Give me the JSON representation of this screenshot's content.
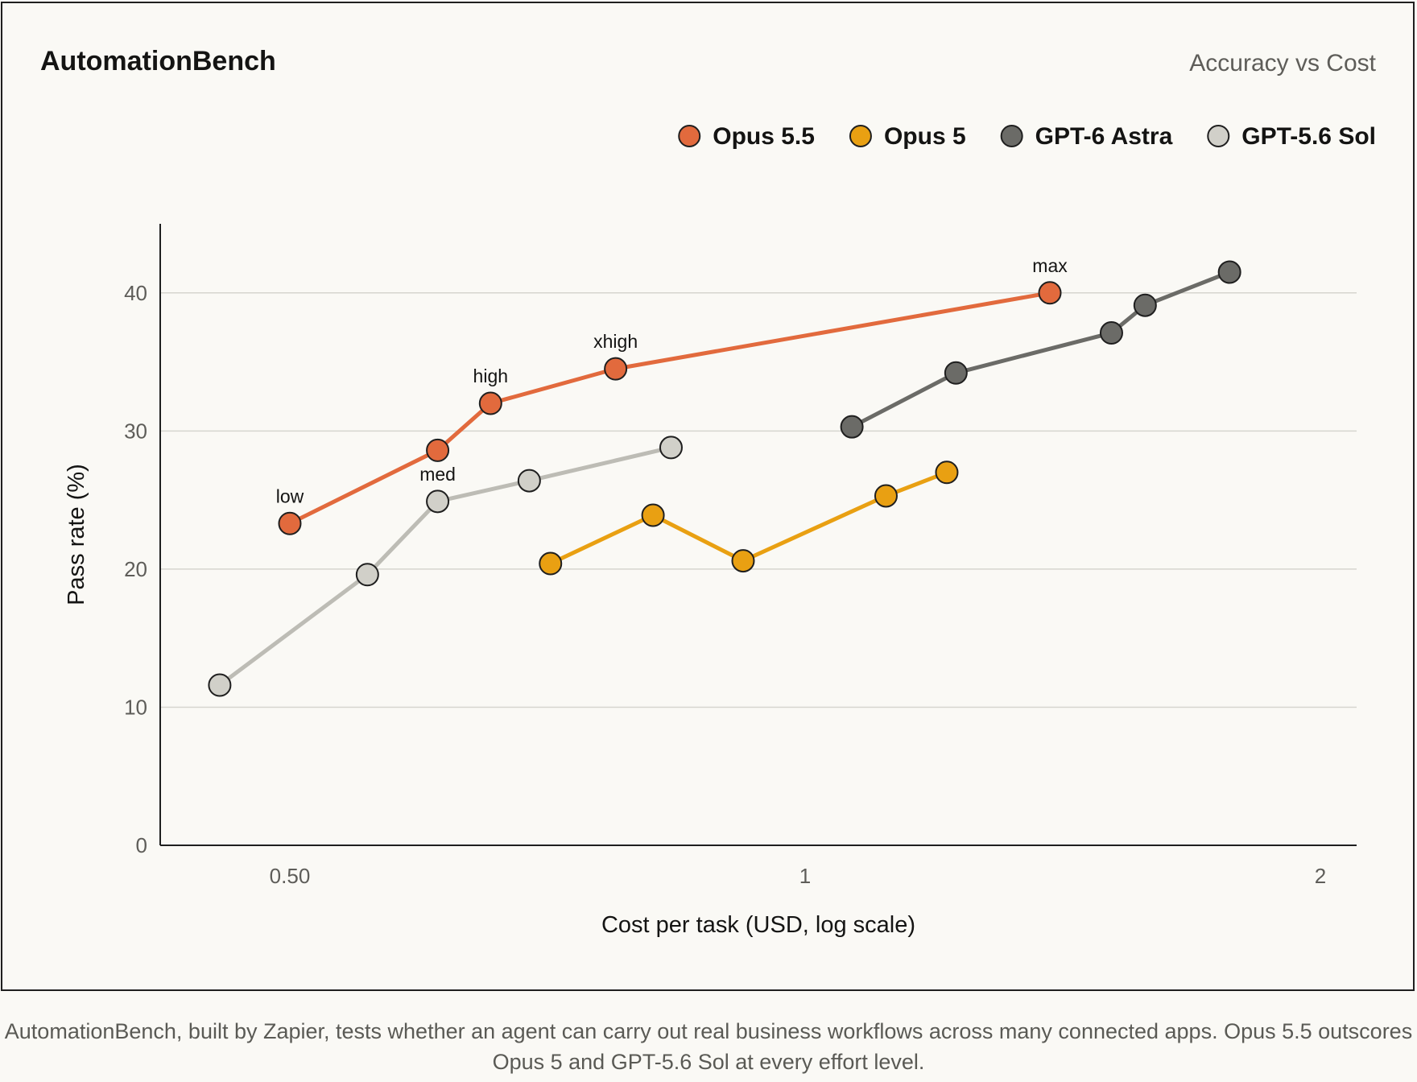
{
  "chart_data": {
    "type": "line",
    "title": "AutomationBench",
    "subtitle": "Accuracy vs Cost",
    "xlabel": "Cost per task (USD, log scale)",
    "ylabel": "Pass rate (%)",
    "x_scale": "log",
    "xlim": [
      0.42,
      2.1
    ],
    "ylim": [
      0,
      45
    ],
    "x_ticks": [
      0.5,
      1,
      2
    ],
    "x_tick_labels": [
      "0.50",
      "1",
      "2"
    ],
    "y_ticks": [
      0,
      10,
      20,
      30,
      40
    ],
    "y_tick_labels": [
      "0",
      "10",
      "20",
      "30",
      "40"
    ],
    "grid": "horizontal",
    "legend_position": "top-right",
    "series": [
      {
        "name": "Opus 5.5",
        "color": "#e26a3d",
        "points": [
          {
            "x": 0.5,
            "y": 23.3,
            "label": "low"
          },
          {
            "x": 0.61,
            "y": 28.6,
            "label": ""
          },
          {
            "x": 0.655,
            "y": 32.0,
            "label": "high"
          },
          {
            "x": 0.775,
            "y": 34.5,
            "label": "xhigh"
          },
          {
            "x": 1.39,
            "y": 40.0,
            "label": "max"
          }
        ]
      },
      {
        "name": "Opus 5",
        "color": "#e9a012",
        "points": [
          {
            "x": 0.71,
            "y": 20.4
          },
          {
            "x": 0.815,
            "y": 23.9
          },
          {
            "x": 0.92,
            "y": 20.6
          },
          {
            "x": 1.115,
            "y": 25.3
          },
          {
            "x": 1.21,
            "y": 27.0
          }
        ]
      },
      {
        "name": "GPT-6 Astra",
        "color": "#6b6b67",
        "points": [
          {
            "x": 1.065,
            "y": 30.3
          },
          {
            "x": 1.225,
            "y": 34.2
          },
          {
            "x": 1.51,
            "y": 37.1
          },
          {
            "x": 1.58,
            "y": 39.1
          },
          {
            "x": 1.77,
            "y": 41.5
          }
        ]
      },
      {
        "name": "GPT-5.6 Sol",
        "color": "#d1d0c9",
        "line_color": "#bdbcb5",
        "points": [
          {
            "x": 0.455,
            "y": 11.6
          },
          {
            "x": 0.555,
            "y": 19.6
          },
          {
            "x": 0.61,
            "y": 24.9,
            "label": "med"
          },
          {
            "x": 0.69,
            "y": 26.4
          },
          {
            "x": 0.835,
            "y": 28.8
          }
        ]
      }
    ]
  },
  "caption": "AutomationBench, built by Zapier, tests whether an agent can carry out real business workflows across many connected apps. Opus 5.5 outscores Opus 5 and GPT-5.6 Sol at every effort level."
}
